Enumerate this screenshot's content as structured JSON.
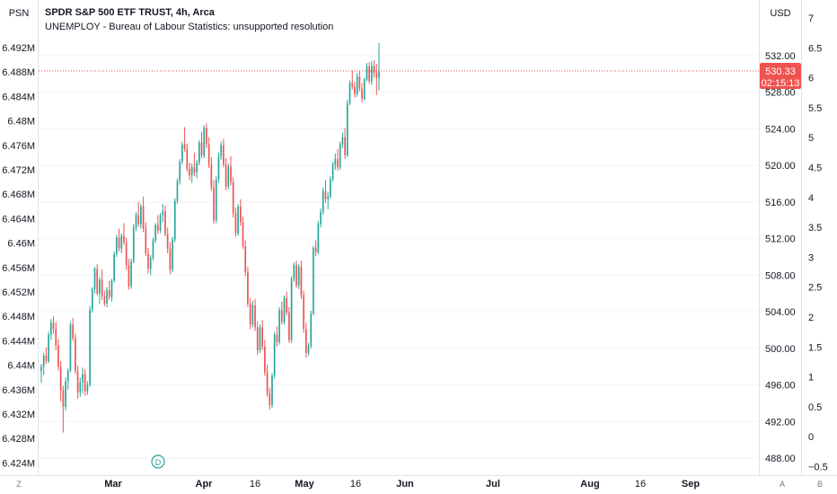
{
  "header": {
    "left_scale_label": "PSN",
    "right_scale_label": "USD",
    "title": "SPDR S&P 500 ETF TRUST, 4h, Arca",
    "study_label": "UNEMPLOY - Bureau of Labour Statistics: unsupported resolution"
  },
  "bottom": {
    "left_button": "Z",
    "right_button_a": "A",
    "right_button_b": "B",
    "dividend_marker": "D"
  },
  "price_badge": {
    "price": "530.33",
    "countdown": "02:15:13"
  },
  "colors": {
    "up": "#26a69a",
    "down": "#ef5350",
    "last_price": "#ef5350",
    "grid": "#f0f3fa",
    "axis_text": "#131722",
    "dividend": "#26a69a"
  },
  "chart_data": {
    "type": "candlestick",
    "title": "SPDR S&P 500 ETF TRUST, 4h, Arca",
    "x_ticks": [
      "Mar",
      "Apr",
      "16",
      "May",
      "16",
      "Jun",
      "Jul",
      "Aug",
      "16",
      "Sep"
    ],
    "price_axis": {
      "unit": "USD",
      "ticks": [
        "532.00",
        "528.00",
        "524.00",
        "520.00",
        "516.00",
        "512.00",
        "508.00",
        "504.00",
        "500.00",
        "496.00",
        "492.00",
        "488.00"
      ],
      "range": [
        486.8,
        535.6
      ]
    },
    "left_axis": {
      "unit": "PSN",
      "ticks": [
        "6.492M",
        "6.488M",
        "6.484M",
        "6.48M",
        "6.476M",
        "6.472M",
        "6.468M",
        "6.464M",
        "6.46M",
        "6.456M",
        "6.452M",
        "6.448M",
        "6.444M",
        "6.44M",
        "6.436M",
        "6.432M",
        "6.428M",
        "6.424M"
      ]
    },
    "secondary_axis": {
      "ticks": [
        "7",
        "6.5",
        "6",
        "5.5",
        "5",
        "4.5",
        "4",
        "3.5",
        "3",
        "2.5",
        "2",
        "1.5",
        "1",
        "0.5",
        "0",
        "−0.5"
      ]
    },
    "last_price": 530.33,
    "dividend_date": "Mar 15",
    "candles": [
      [
        497.5,
        498.3,
        496.2,
        498.0
      ],
      [
        498.0,
        499.5,
        497.1,
        499.2
      ],
      [
        499.2,
        500.1,
        498.3,
        498.6
      ],
      [
        498.6,
        501.8,
        498.4,
        501.5
      ],
      [
        501.5,
        503.2,
        500.9,
        502.8
      ],
      [
        502.8,
        503.5,
        501.6,
        502.1
      ],
      [
        502.1,
        502.9,
        499.8,
        500.3
      ],
      [
        500.3,
        501.0,
        497.6,
        498.0
      ],
      [
        498.0,
        498.6,
        494.2,
        495.4
      ],
      [
        495.4,
        495.9,
        490.8,
        493.6
      ],
      [
        493.6,
        496.8,
        493.2,
        496.4
      ],
      [
        496.4,
        497.8,
        495.5,
        497.6
      ],
      [
        497.6,
        502.9,
        497.4,
        502.6
      ],
      [
        502.6,
        503.3,
        500.8,
        501.1
      ],
      [
        501.1,
        501.6,
        497.2,
        497.5
      ],
      [
        497.5,
        498.1,
        494.5,
        495.2
      ],
      [
        495.2,
        496.8,
        494.7,
        496.3
      ],
      [
        496.3,
        497.9,
        495.1,
        497.2
      ],
      [
        497.2,
        497.7,
        494.8,
        495.3
      ],
      [
        495.3,
        496.4,
        494.9,
        496.0
      ],
      [
        496.0,
        504.6,
        495.8,
        504.2
      ],
      [
        504.2,
        506.7,
        503.9,
        506.5
      ],
      [
        506.5,
        508.9,
        506.0,
        508.7
      ],
      [
        508.7,
        509.2,
        505.8,
        506.0
      ],
      [
        506.0,
        507.8,
        504.9,
        507.5
      ],
      [
        507.5,
        508.6,
        505.3,
        505.7
      ],
      [
        505.7,
        506.3,
        504.6,
        504.9
      ],
      [
        504.9,
        506.7,
        504.5,
        506.4
      ],
      [
        506.4,
        507.4,
        505.3,
        505.6
      ],
      [
        505.6,
        507.6,
        505.1,
        507.4
      ],
      [
        507.4,
        510.6,
        507.2,
        510.3
      ],
      [
        510.3,
        512.4,
        510.0,
        512.1
      ],
      [
        512.1,
        513.1,
        510.6,
        510.9
      ],
      [
        510.9,
        512.6,
        510.4,
        512.3
      ],
      [
        512.3,
        513.7,
        511.3,
        511.6
      ],
      [
        511.6,
        512.1,
        508.6,
        509.1
      ],
      [
        509.1,
        509.8,
        506.4,
        506.8
      ],
      [
        506.8,
        509.8,
        506.5,
        509.5
      ],
      [
        509.5,
        513.6,
        509.3,
        513.2
      ],
      [
        513.2,
        514.9,
        512.8,
        514.6
      ],
      [
        514.6,
        516.0,
        513.3,
        513.6
      ],
      [
        513.6,
        515.8,
        513.1,
        515.5
      ],
      [
        515.5,
        516.6,
        512.7,
        513.1
      ],
      [
        513.1,
        513.8,
        510.1,
        510.4
      ],
      [
        510.4,
        511.0,
        508.2,
        508.7
      ],
      [
        508.7,
        510.2,
        508.0,
        509.9
      ],
      [
        509.9,
        512.1,
        509.6,
        511.8
      ],
      [
        511.8,
        513.7,
        511.5,
        513.5
      ],
      [
        513.5,
        514.6,
        512.5,
        512.9
      ],
      [
        512.9,
        514.8,
        512.6,
        514.5
      ],
      [
        514.5,
        515.8,
        513.8,
        515.0
      ],
      [
        515.0,
        515.6,
        512.2,
        512.5
      ],
      [
        512.5,
        513.2,
        510.4,
        510.9
      ],
      [
        510.9,
        511.6,
        508.1,
        508.6
      ],
      [
        508.6,
        512.2,
        508.3,
        511.9
      ],
      [
        511.9,
        516.4,
        511.6,
        516.1
      ],
      [
        516.1,
        518.6,
        515.8,
        518.3
      ],
      [
        518.3,
        520.7,
        517.9,
        520.4
      ],
      [
        520.4,
        522.6,
        520.1,
        522.3
      ],
      [
        522.3,
        524.2,
        521.5,
        521.8
      ],
      [
        521.8,
        522.4,
        519.3,
        519.6
      ],
      [
        519.6,
        520.3,
        518.4,
        518.9
      ],
      [
        518.9,
        520.2,
        518.1,
        519.8
      ],
      [
        519.8,
        521.4,
        518.8,
        519.2
      ],
      [
        519.2,
        520.6,
        518.6,
        520.3
      ],
      [
        520.3,
        522.8,
        520.0,
        522.5
      ],
      [
        522.5,
        523.7,
        520.8,
        521.1
      ],
      [
        521.1,
        524.4,
        520.8,
        524.1
      ],
      [
        524.1,
        524.6,
        521.9,
        522.3
      ],
      [
        522.3,
        523.1,
        519.7,
        520.1
      ],
      [
        520.1,
        520.9,
        517.2,
        517.6
      ],
      [
        517.6,
        518.4,
        513.6,
        514.0
      ],
      [
        514.0,
        518.8,
        513.7,
        518.5
      ],
      [
        518.5,
        521.4,
        518.1,
        521.0
      ],
      [
        521.0,
        522.6,
        520.6,
        522.2
      ],
      [
        522.2,
        522.9,
        519.8,
        520.1
      ],
      [
        520.1,
        520.8,
        517.3,
        517.7
      ],
      [
        517.7,
        520.2,
        517.4,
        519.9
      ],
      [
        519.9,
        521.0,
        517.8,
        518.2
      ],
      [
        518.2,
        518.7,
        514.3,
        514.8
      ],
      [
        514.8,
        515.4,
        512.2,
        512.6
      ],
      [
        512.6,
        515.8,
        512.3,
        515.5
      ],
      [
        515.5,
        516.3,
        513.4,
        513.8
      ],
      [
        513.8,
        514.4,
        510.9,
        511.2
      ],
      [
        511.2,
        511.8,
        507.9,
        508.3
      ],
      [
        508.3,
        508.9,
        504.5,
        504.9
      ],
      [
        504.9,
        505.5,
        502.1,
        502.6
      ],
      [
        502.6,
        505.2,
        502.3,
        504.7
      ],
      [
        504.7,
        505.4,
        501.9,
        502.3
      ],
      [
        502.3,
        502.9,
        499.3,
        499.8
      ],
      [
        499.8,
        502.6,
        499.5,
        502.3
      ],
      [
        502.3,
        503.1,
        499.8,
        500.2
      ],
      [
        500.2,
        500.9,
        497.0,
        497.4
      ],
      [
        497.4,
        498.2,
        494.7,
        495.1
      ],
      [
        495.1,
        495.7,
        493.3,
        493.8
      ],
      [
        493.8,
        497.3,
        493.5,
        497.0
      ],
      [
        497.0,
        501.8,
        496.7,
        501.5
      ],
      [
        501.5,
        502.4,
        500.2,
        500.7
      ],
      [
        500.7,
        504.5,
        500.4,
        504.2
      ],
      [
        504.2,
        505.1,
        502.6,
        502.9
      ],
      [
        502.9,
        505.8,
        502.6,
        505.5
      ],
      [
        505.5,
        506.2,
        503.6,
        503.9
      ],
      [
        503.9,
        504.5,
        500.6,
        500.9
      ],
      [
        500.9,
        507.9,
        500.6,
        507.6
      ],
      [
        507.6,
        509.4,
        507.3,
        509.1
      ],
      [
        509.1,
        509.6,
        506.6,
        506.9
      ],
      [
        506.9,
        509.2,
        506.5,
        508.9
      ],
      [
        508.9,
        509.6,
        505.4,
        505.8
      ],
      [
        505.8,
        506.3,
        501.7,
        502.1
      ],
      [
        502.1,
        502.8,
        499.0,
        499.5
      ],
      [
        499.5,
        500.6,
        499.2,
        500.3
      ],
      [
        500.3,
        504.1,
        500.0,
        503.8
      ],
      [
        503.8,
        511.2,
        503.6,
        511.0
      ],
      [
        511.0,
        511.8,
        510.1,
        510.5
      ],
      [
        510.5,
        513.9,
        510.3,
        513.6
      ],
      [
        513.6,
        515.3,
        513.2,
        514.9
      ],
      [
        514.9,
        517.6,
        514.6,
        517.2
      ],
      [
        517.2,
        518.4,
        515.9,
        516.3
      ],
      [
        516.3,
        517.1,
        515.2,
        516.6
      ],
      [
        516.6,
        518.8,
        516.4,
        518.5
      ],
      [
        518.5,
        520.4,
        518.2,
        520.1
      ],
      [
        520.1,
        521.3,
        519.5,
        520.7
      ],
      [
        520.7,
        521.8,
        519.4,
        519.8
      ],
      [
        519.8,
        522.6,
        519.5,
        522.3
      ],
      [
        522.3,
        523.6,
        521.9,
        523.1
      ],
      [
        523.1,
        524.1,
        520.7,
        521.1
      ],
      [
        521.1,
        527.2,
        520.9,
        526.8
      ],
      [
        526.8,
        529.3,
        526.6,
        529.0
      ],
      [
        529.0,
        530.4,
        528.3,
        528.6
      ],
      [
        528.6,
        529.1,
        527.4,
        527.8
      ],
      [
        527.8,
        530.1,
        527.5,
        529.7
      ],
      [
        529.7,
        530.3,
        528.1,
        528.4
      ],
      [
        528.4,
        529.0,
        526.9,
        527.3
      ],
      [
        527.3,
        529.6,
        527.1,
        529.4
      ],
      [
        529.4,
        531.2,
        529.2,
        530.8
      ],
      [
        530.8,
        531.3,
        528.9,
        529.2
      ],
      [
        529.2,
        531.4,
        528.8,
        530.9
      ],
      [
        530.9,
        531.5,
        529.6,
        530.1
      ],
      [
        530.1,
        531.1,
        527.7,
        529.6
      ],
      [
        529.6,
        533.4,
        528.2,
        530.33
      ]
    ]
  }
}
